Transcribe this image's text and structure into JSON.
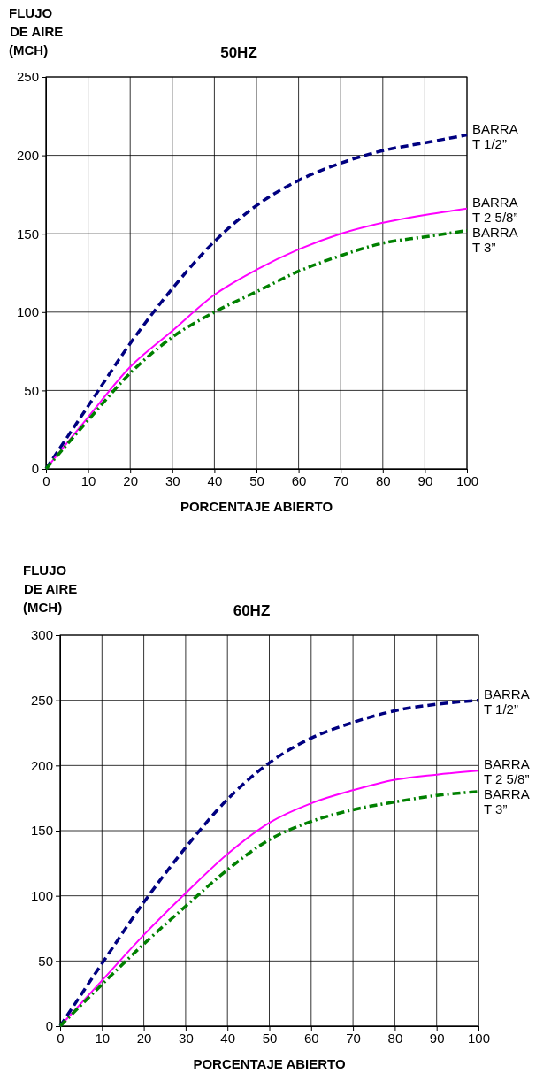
{
  "chart_data": [
    {
      "type": "line",
      "title": "50HZ",
      "ylabel": "FLUJO\nDE AIRE\n(MCH)",
      "xlabel": "PORCENTAJE ABIERTO",
      "x": [
        0,
        10,
        20,
        30,
        40,
        50,
        60,
        70,
        80,
        90,
        100
      ],
      "xlim": [
        0,
        100
      ],
      "xticks": [
        0,
        10,
        20,
        30,
        40,
        50,
        60,
        70,
        80,
        90,
        100
      ],
      "ylim": [
        0,
        250
      ],
      "yticks": [
        0,
        50,
        100,
        150,
        200,
        250
      ],
      "grid": true,
      "series": [
        {
          "name": "BARRA\nT 1/2”",
          "color": "#000080",
          "line_style": "dashed",
          "values": [
            0,
            40,
            80,
            115,
            145,
            168,
            184,
            195,
            203,
            208,
            213
          ]
        },
        {
          "name": "BARRA\nT 2 5/8”",
          "color": "#ff00ff",
          "line_style": "solid",
          "values": [
            0,
            33,
            65,
            88,
            111,
            127,
            140,
            150,
            157,
            162,
            166
          ]
        },
        {
          "name": "BARRA\nT 3”",
          "color": "#008000",
          "line_style": "dashdot",
          "values": [
            0,
            31,
            61,
            84,
            100,
            113,
            126,
            136,
            144,
            148,
            152
          ]
        }
      ]
    },
    {
      "type": "line",
      "title": "60HZ",
      "ylabel": "FLUJO\nDE AIRE\n(MCH)",
      "xlabel": "PORCENTAJE ABIERTO",
      "x": [
        0,
        10,
        20,
        30,
        40,
        50,
        60,
        70,
        80,
        90,
        100
      ],
      "xlim": [
        0,
        100
      ],
      "xticks": [
        0,
        10,
        20,
        30,
        40,
        50,
        60,
        70,
        80,
        90,
        100
      ],
      "ylim": [
        0,
        300
      ],
      "yticks": [
        0,
        50,
        100,
        150,
        200,
        250,
        300
      ],
      "grid": true,
      "series": [
        {
          "name": "BARRA\nT 1/2”",
          "color": "#000080",
          "line_style": "dashed",
          "values": [
            0,
            48,
            95,
            137,
            174,
            202,
            221,
            233,
            242,
            247,
            250
          ]
        },
        {
          "name": "BARRA\nT 2 5/8”",
          "color": "#ff00ff",
          "line_style": "solid",
          "values": [
            0,
            35,
            70,
            102,
            132,
            156,
            171,
            181,
            189,
            193,
            196
          ]
        },
        {
          "name": "BARRA\nT 3”",
          "color": "#008000",
          "line_style": "dashdot",
          "values": [
            0,
            32,
            63,
            92,
            120,
            143,
            157,
            166,
            172,
            177,
            180
          ]
        }
      ]
    }
  ]
}
